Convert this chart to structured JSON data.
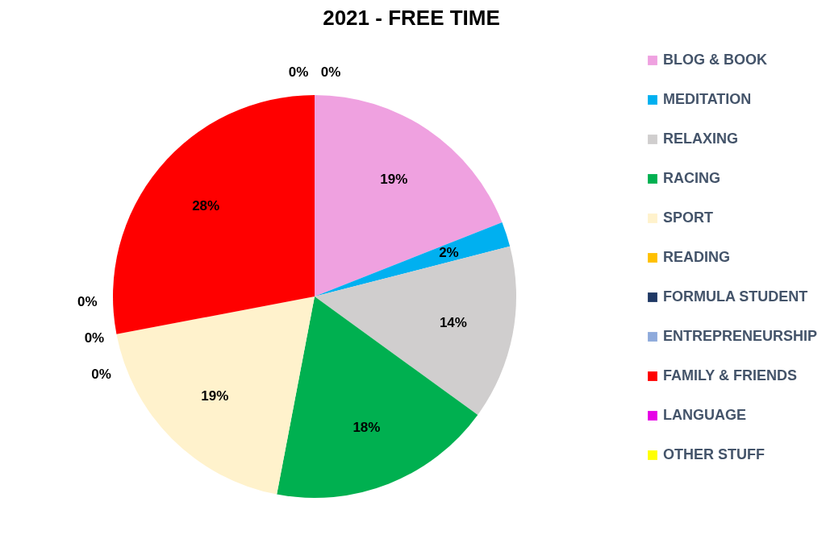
{
  "chart_data": {
    "type": "pie",
    "title": "2021 - FREE TIME",
    "categories": [
      "BLOG & BOOK",
      "MEDITATION",
      "RELAXING",
      "RACING",
      "SPORT",
      "READING",
      "FORMULA STUDENT",
      "ENTREPRENEURSHIP",
      "FAMILY & FRIENDS",
      "LANGUAGE",
      "OTHER STUFF"
    ],
    "values": [
      19,
      2,
      14,
      18,
      19,
      0,
      0,
      0,
      28,
      0,
      0
    ],
    "value_labels": [
      "19%",
      "2%",
      "14%",
      "18%",
      "19%",
      "0%",
      "0%",
      "0%",
      "28%",
      "0%",
      "0%"
    ],
    "colors": [
      "#efa1e0",
      "#00b0f0",
      "#d0cece",
      "#00b050",
      "#fff2cc",
      "#ffc000",
      "#1f3864",
      "#8eaadb",
      "#ff0000",
      "#e600e6",
      "#ffff00"
    ],
    "legend": "right"
  }
}
